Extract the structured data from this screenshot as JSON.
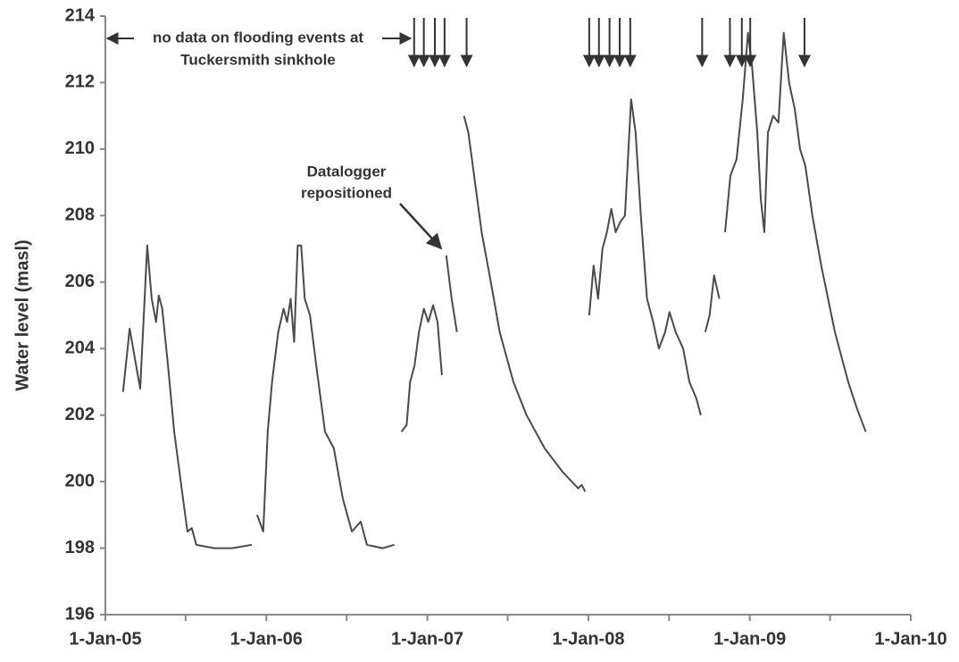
{
  "chart_data": {
    "type": "line",
    "ylabel": "Water level  (masl)",
    "color": "#4a4a4a",
    "xlim": [
      "2005-01-01",
      "2010-01-01"
    ],
    "xticks": [
      {
        "value": "2005-01-01",
        "label": "1-Jan-05"
      },
      {
        "value": "2006-01-01",
        "label": "1-Jan-06"
      },
      {
        "value": "2007-01-01",
        "label": "1-Jan-07"
      },
      {
        "value": "2008-01-01",
        "label": "1-Jan-08"
      },
      {
        "value": "2009-01-01",
        "label": "1-Jan-09"
      },
      {
        "value": "2010-01-01",
        "label": "1-Jan-10"
      }
    ],
    "xminorticks": [
      "2005-07-02",
      "2006-07-02",
      "2007-07-02",
      "2008-07-02",
      "2009-07-02"
    ],
    "ylim": [
      196,
      214
    ],
    "yticks": [
      196,
      198,
      200,
      202,
      204,
      206,
      208,
      210,
      212,
      214
    ],
    "x": [
      "2005-02-10",
      "2005-02-25",
      "2005-03-05",
      "2005-03-21",
      "2005-04-06",
      "2005-04-16",
      "2005-04-26",
      "2005-05-02",
      "2005-05-10",
      "2005-05-23",
      "2005-06-06",
      "2005-06-26",
      "2005-07-06",
      "2005-07-16",
      "2005-07-26",
      "2005-09-05",
      "2005-10-15",
      "2005-11-29",
      "2005-12-05",
      "2005-12-11",
      "2005-12-25",
      "2006-01-04",
      "2006-01-14",
      "2006-01-28",
      "2006-02-09",
      "2006-02-17",
      "2006-02-25",
      "2006-03-05",
      "2006-03-13",
      "2006-03-21",
      "2006-03-29",
      "2006-04-10",
      "2006-04-24",
      "2006-05-14",
      "2006-06-03",
      "2006-06-23",
      "2006-07-14",
      "2006-08-03",
      "2006-08-17",
      "2006-09-22",
      "2006-10-18",
      "2006-10-25",
      "2006-11-03",
      "2006-11-15",
      "2006-11-23",
      "2006-12-03",
      "2006-12-13",
      "2006-12-24",
      "2007-01-03",
      "2007-01-14",
      "2007-01-24",
      "2007-02-03",
      "2007-02-08",
      "2007-02-13",
      "2007-02-25",
      "2007-03-09",
      "2007-03-17",
      "2007-03-25",
      "2007-04-04",
      "2007-04-14",
      "2007-05-04",
      "2007-05-25",
      "2007-06-14",
      "2007-07-15",
      "2007-08-14",
      "2007-09-24",
      "2007-11-03",
      "2007-12-09",
      "2007-12-17",
      "2007-12-25",
      "2007-12-29",
      "2008-01-03",
      "2008-01-13",
      "2008-01-23",
      "2008-02-02",
      "2008-02-12",
      "2008-02-22",
      "2008-03-03",
      "2008-03-13",
      "2008-03-24",
      "2008-04-07",
      "2008-04-17",
      "2008-04-29",
      "2008-05-13",
      "2008-05-27",
      "2008-06-09",
      "2008-06-23",
      "2008-07-03",
      "2008-07-17",
      "2008-08-03",
      "2008-08-17",
      "2008-09-02",
      "2008-09-12",
      "2008-09-17",
      "2008-09-22",
      "2008-10-02",
      "2008-10-12",
      "2008-10-24",
      "2008-10-30",
      "2008-11-06",
      "2008-11-18",
      "2008-12-02",
      "2008-12-16",
      "2008-12-28",
      "2009-01-06",
      "2009-01-18",
      "2009-01-26",
      "2009-02-03",
      "2009-02-11",
      "2009-02-23",
      "2009-03-07",
      "2009-03-19",
      "2009-03-31",
      "2009-04-13",
      "2009-04-25",
      "2009-05-07",
      "2009-05-23",
      "2009-06-12",
      "2009-07-13",
      "2009-08-12",
      "2009-09-01",
      "2009-09-21"
    ],
    "values": [
      202.7,
      204.6,
      204.0,
      202.8,
      207.1,
      205.5,
      204.8,
      205.6,
      205.2,
      203.5,
      201.5,
      199.5,
      198.5,
      198.6,
      198.1,
      198.0,
      198.0,
      198.1,
      null,
      199.0,
      198.5,
      201.5,
      203.0,
      204.5,
      205.2,
      204.8,
      205.5,
      204.2,
      207.1,
      207.1,
      205.5,
      205.0,
      203.5,
      201.5,
      201.0,
      199.5,
      198.5,
      198.8,
      198.1,
      198.0,
      198.1,
      null,
      201.5,
      201.7,
      203.0,
      203.5,
      204.5,
      205.2,
      204.8,
      205.3,
      204.8,
      203.2,
      null,
      206.8,
      205.5,
      204.5,
      null,
      211.0,
      210.5,
      209.5,
      207.5,
      206.0,
      204.5,
      203.0,
      202.0,
      201.0,
      200.3,
      199.8,
      199.9,
      199.7,
      null,
      205.0,
      206.5,
      205.5,
      207.0,
      207.5,
      208.2,
      207.5,
      207.8,
      208.0,
      211.5,
      210.5,
      208.0,
      205.5,
      204.8,
      204.0,
      204.5,
      205.1,
      204.5,
      204.0,
      203.0,
      202.5,
      202.0,
      null,
      204.5,
      205.0,
      206.2,
      205.5,
      null,
      207.5,
      209.2,
      209.7,
      211.5,
      213.5,
      212.5,
      210.5,
      208.5,
      207.5,
      210.5,
      211.0,
      210.8,
      213.5,
      212.0,
      211.2,
      210.0,
      209.5,
      208.0,
      206.5,
      204.5,
      203.0,
      202.2,
      201.5
    ],
    "flood_events": [
      "2006-12-02",
      "2006-12-24",
      "2007-01-18",
      "2007-02-09",
      "2007-03-31",
      "2008-01-03",
      "2008-01-25",
      "2008-02-18",
      "2008-03-12",
      "2008-04-05",
      "2008-09-15",
      "2008-11-17",
      "2008-12-14",
      "2009-01-02",
      "2009-05-05"
    ],
    "annotations": {
      "no_data": [
        "no data on flooding events at",
        "Tuckersmith sinkhole"
      ],
      "datalogger": [
        "Datalogger",
        "repositioned"
      ]
    }
  }
}
